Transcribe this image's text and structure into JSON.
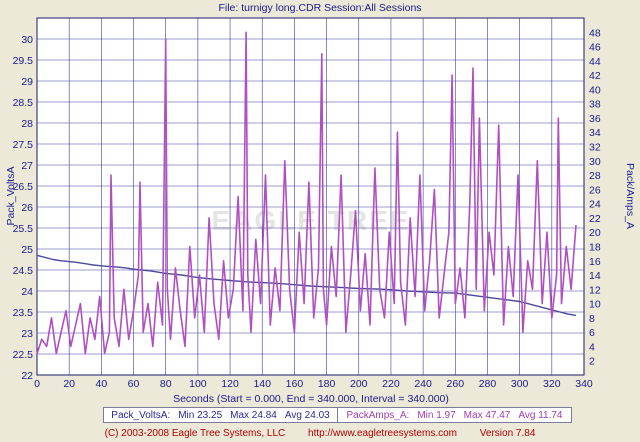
{
  "header": {
    "title": "File: turnigy long.CDR   Session:All Sessions"
  },
  "watermark": {
    "text": "EAGLE TREE"
  },
  "chart_data": {
    "type": "line",
    "title": "File: turnigy long.CDR   Session:All Sessions",
    "xlabel": "Seconds (Start = 0.000,  End = 340.000,  Interval = 340.000)",
    "ylabel_left": "Pack_VoltsA",
    "ylabel_right": "Pack/Amps_A",
    "xlim": [
      0,
      340
    ],
    "x_ticks": [
      0,
      20,
      40,
      60,
      80,
      100,
      120,
      140,
      160,
      180,
      200,
      220,
      240,
      260,
      280,
      300,
      320,
      340
    ],
    "ylim_left": [
      22,
      30.5
    ],
    "y_ticks_left": [
      22,
      22.5,
      23,
      23.5,
      24,
      24.5,
      25,
      25.5,
      26,
      26.5,
      27,
      27.5,
      28,
      28.5,
      29,
      29.5,
      30
    ],
    "ylim_right": [
      0,
      50
    ],
    "y_ticks_right": [
      2,
      4,
      6,
      8,
      10,
      12,
      14,
      16,
      18,
      20,
      22,
      24,
      26,
      28,
      30,
      32,
      34,
      36,
      38,
      40,
      42,
      44,
      46,
      48
    ],
    "grid": true,
    "series": [
      {
        "name": "Pack_VoltsA",
        "axis": "left",
        "color": "#4a4a9a",
        "x": [
          0,
          5,
          10,
          15,
          20,
          25,
          30,
          35,
          40,
          45,
          50,
          55,
          60,
          65,
          70,
          75,
          80,
          85,
          90,
          95,
          100,
          110,
          120,
          130,
          140,
          150,
          160,
          170,
          180,
          190,
          200,
          210,
          220,
          230,
          240,
          250,
          260,
          270,
          280,
          290,
          300,
          305,
          310,
          315,
          320,
          325,
          330,
          335
        ],
        "y": [
          24.85,
          24.8,
          24.75,
          24.72,
          24.7,
          24.68,
          24.65,
          24.62,
          24.6,
          24.58,
          24.57,
          24.55,
          24.52,
          24.5,
          24.48,
          24.45,
          24.42,
          24.4,
          24.38,
          24.35,
          24.32,
          24.28,
          24.25,
          24.22,
          24.2,
          24.18,
          24.15,
          24.12,
          24.1,
          24.08,
          24.06,
          24.05,
          24.03,
          24.0,
          23.98,
          23.96,
          23.95,
          23.9,
          23.85,
          23.8,
          23.75,
          23.7,
          23.65,
          23.6,
          23.55,
          23.5,
          23.45,
          23.42
        ]
      },
      {
        "name": "PackAmps_A",
        "axis": "right",
        "color": "#b050c0",
        "x": [
          0,
          3,
          6,
          9,
          12,
          15,
          18,
          21,
          24,
          27,
          30,
          33,
          36,
          39,
          42,
          45,
          46,
          48,
          51,
          54,
          57,
          60,
          63,
          64,
          66,
          69,
          72,
          75,
          78,
          80,
          81,
          83,
          86,
          89,
          92,
          95,
          98,
          101,
          104,
          107,
          110,
          113,
          116,
          119,
          122,
          125,
          128,
          130,
          131,
          133,
          136,
          139,
          142,
          145,
          148,
          151,
          154,
          157,
          160,
          163,
          166,
          169,
          172,
          175,
          177,
          178,
          180,
          183,
          186,
          189,
          192,
          195,
          198,
          201,
          204,
          207,
          210,
          213,
          216,
          219,
          222,
          224,
          226,
          229,
          232,
          235,
          238,
          241,
          244,
          247,
          250,
          253,
          256,
          258,
          260,
          263,
          266,
          269,
          271,
          273,
          275,
          278,
          281,
          284,
          287,
          290,
          293,
          296,
          299,
          302,
          305,
          308,
          311,
          314,
          317,
          320,
          323,
          324,
          326,
          329,
          332,
          335
        ],
        "y": [
          3,
          5,
          4,
          8,
          3,
          6,
          9,
          4,
          7,
          10,
          3,
          8,
          5,
          11,
          3,
          6,
          28,
          8,
          4,
          12,
          5,
          9,
          14,
          27,
          6,
          10,
          4,
          13,
          7,
          47,
          12,
          5,
          15,
          9,
          4,
          18,
          8,
          14,
          6,
          22,
          10,
          5,
          16,
          8,
          12,
          25,
          9,
          48,
          14,
          6,
          19,
          10,
          28,
          7,
          15,
          9,
          30,
          12,
          6,
          20,
          10,
          27,
          8,
          15,
          45,
          12,
          7,
          18,
          11,
          28,
          6,
          14,
          23,
          9,
          17,
          7,
          29,
          12,
          8,
          20,
          10,
          34,
          13,
          7,
          22,
          11,
          28,
          9,
          16,
          26,
          8,
          14,
          20,
          42,
          10,
          15,
          8,
          24,
          43,
          12,
          36,
          9,
          20,
          14,
          35,
          7,
          18,
          11,
          28,
          6,
          16,
          12,
          30,
          10,
          20,
          8,
          14,
          36,
          10,
          18,
          12,
          21
        ]
      }
    ]
  },
  "stats": {
    "volts": {
      "name": "Pack_VoltsA:",
      "min": "Min 23.25",
      "max": "Max 24.84",
      "avg": "Avg 24.03"
    },
    "amps": {
      "name": "PackAmps_A:",
      "min": "Min 1.97",
      "max": "Max 47.47",
      "avg": "Avg 11.74"
    }
  },
  "footer": {
    "copyright": "(C) 2003-2008 Eagle Tree Systems, LLC",
    "url": "http://www.eagletreesystems.com",
    "version": "Version 7.84"
  },
  "colors": {
    "volts": "#4a4a9a",
    "amps": "#b050c0",
    "grid": "#3a3aa0",
    "text": "#1a1a8c"
  }
}
